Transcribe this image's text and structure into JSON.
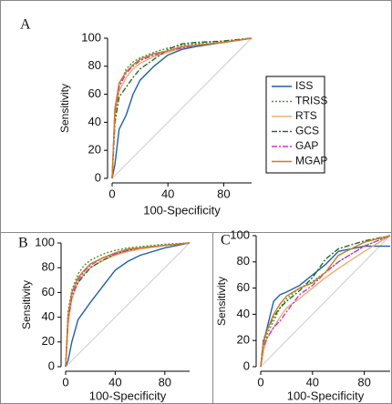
{
  "chart_data": [
    {
      "type": "line",
      "title": "A",
      "x_label": "100-Specificity",
      "y_label": "Sensitivity",
      "x": [
        0,
        2,
        5,
        10,
        15,
        20,
        30,
        40,
        50,
        60,
        80,
        100
      ],
      "xlim": [
        0,
        100
      ],
      "ylim": [
        0,
        100
      ],
      "xticks": [
        0,
        40,
        80
      ],
      "yticks": [
        0,
        20,
        40,
        60,
        80,
        100
      ],
      "legend": "right",
      "series": [
        {
          "name": "ISS",
          "color": "#1f5fa8",
          "dash": "solid",
          "values": [
            0,
            10,
            35,
            45,
            60,
            70,
            80,
            88,
            92,
            94,
            97,
            100
          ]
        },
        {
          "name": "TRISS",
          "color": "#3a9a3a",
          "dash": "dotted",
          "values": [
            0,
            45,
            65,
            78,
            83,
            86,
            90,
            93,
            95,
            96,
            98,
            100
          ]
        },
        {
          "name": "RTS",
          "color": "#e8b070",
          "dash": "solid",
          "values": [
            0,
            45,
            62,
            72,
            78,
            82,
            87,
            90,
            93,
            95,
            97,
            100
          ]
        },
        {
          "name": "GCS",
          "color": "#2a6a2a",
          "dash": "dashdot",
          "values": [
            0,
            40,
            58,
            65,
            72,
            78,
            85,
            92,
            96,
            97,
            98,
            100
          ]
        },
        {
          "name": "GAP",
          "color": "#cc33cc",
          "dash": "dashdot",
          "values": [
            0,
            48,
            65,
            75,
            80,
            84,
            88,
            91,
            93,
            95,
            97,
            100
          ]
        },
        {
          "name": "MGAP",
          "color": "#d07a20",
          "dash": "solid",
          "values": [
            0,
            50,
            68,
            76,
            81,
            85,
            89,
            91,
            94,
            95,
            97,
            100
          ]
        }
      ]
    },
    {
      "type": "line",
      "title": "B",
      "x_label": "100-Specificity",
      "y_label": "Sensitivity",
      "x": [
        0,
        2,
        5,
        10,
        15,
        20,
        30,
        40,
        50,
        60,
        80,
        100
      ],
      "xlim": [
        0,
        100
      ],
      "ylim": [
        0,
        100
      ],
      "xticks": [
        0,
        40,
        80
      ],
      "yticks": [
        0,
        20,
        40,
        60,
        80,
        100
      ],
      "series": [
        {
          "color": "#1f5fa8",
          "dash": "solid",
          "values": [
            0,
            5,
            20,
            38,
            45,
            52,
            65,
            78,
            85,
            90,
            96,
            100
          ]
        },
        {
          "color": "#3a9a3a",
          "dash": "dotted",
          "values": [
            0,
            45,
            62,
            75,
            82,
            86,
            91,
            94,
            96,
            97,
            99,
            100
          ]
        },
        {
          "color": "#e8b070",
          "dash": "solid",
          "values": [
            0,
            35,
            55,
            68,
            75,
            80,
            86,
            90,
            93,
            95,
            98,
            100
          ]
        },
        {
          "color": "#2a6a2a",
          "dash": "dashdot",
          "values": [
            0,
            40,
            58,
            68,
            74,
            80,
            86,
            91,
            94,
            96,
            98,
            100
          ]
        },
        {
          "color": "#cc33cc",
          "dash": "dashdot",
          "values": [
            0,
            38,
            56,
            70,
            77,
            82,
            88,
            91,
            94,
            96,
            98,
            100
          ]
        },
        {
          "color": "#d07a20",
          "dash": "solid",
          "values": [
            0,
            42,
            60,
            72,
            78,
            83,
            88,
            92,
            95,
            96,
            98,
            100
          ]
        }
      ]
    },
    {
      "type": "line",
      "title": "C",
      "x_label": "100-Specificity",
      "y_label": "Sensitivity",
      "x": [
        0,
        2,
        5,
        10,
        15,
        20,
        30,
        40,
        50,
        60,
        80,
        100
      ],
      "xlim": [
        0,
        100
      ],
      "ylim": [
        0,
        100
      ],
      "xticks": [
        0,
        40,
        80
      ],
      "yticks": [
        0,
        20,
        40,
        60,
        80,
        100
      ],
      "series": [
        {
          "color": "#1f5fa8",
          "dash": "solid",
          "values": [
            0,
            18,
            30,
            50,
            55,
            57,
            62,
            70,
            78,
            88,
            92,
            92
          ]
        },
        {
          "color": "#3a9a3a",
          "dash": "dotted",
          "values": [
            0,
            15,
            25,
            35,
            45,
            52,
            60,
            65,
            72,
            80,
            92,
            100
          ]
        },
        {
          "color": "#e8b070",
          "dash": "solid",
          "values": [
            0,
            12,
            22,
            30,
            38,
            45,
            52,
            60,
            68,
            75,
            88,
            100
          ]
        },
        {
          "color": "#2a6a2a",
          "dash": "dashdot",
          "values": [
            0,
            20,
            28,
            38,
            45,
            50,
            58,
            68,
            82,
            90,
            96,
            100
          ]
        },
        {
          "color": "#cc33cc",
          "dash": "dashdot",
          "values": [
            0,
            15,
            22,
            30,
            35,
            42,
            55,
            62,
            72,
            80,
            92,
            100
          ]
        },
        {
          "color": "#d07a20",
          "dash": "solid",
          "values": [
            0,
            18,
            28,
            40,
            48,
            54,
            60,
            64,
            72,
            85,
            95,
            100
          ]
        }
      ]
    }
  ]
}
